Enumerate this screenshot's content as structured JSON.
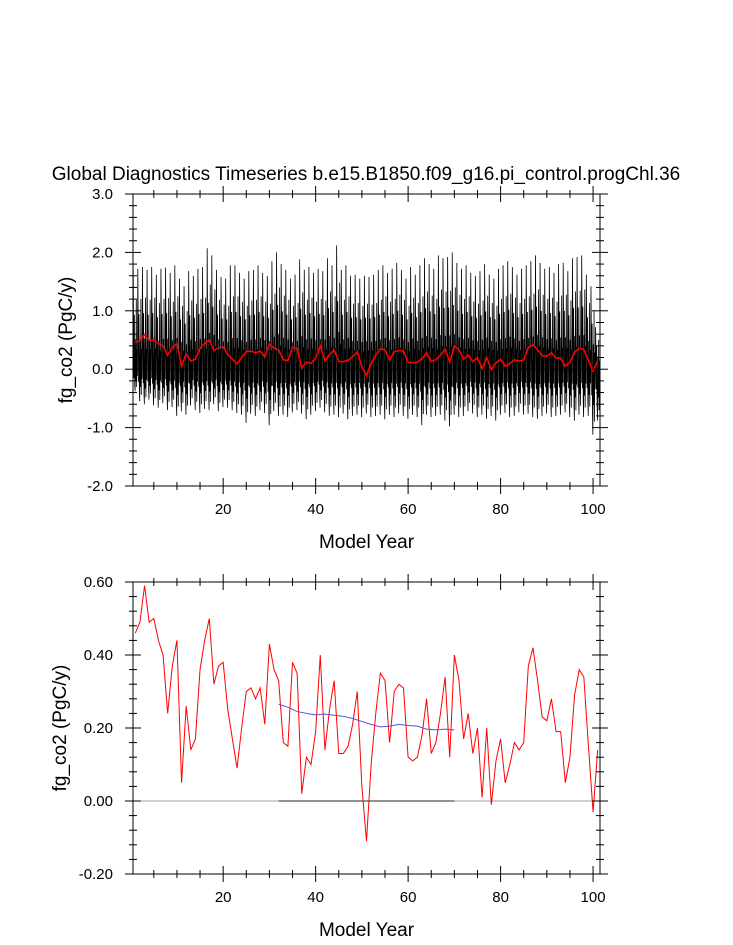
{
  "figure": {
    "title": "Global Diagnostics Timeseries b.e15.B1850.f09_g16.pi_control.progChl.36"
  },
  "colors": {
    "monthly": "#000000",
    "annual": "#ff0000",
    "trend": "#4a5bd4",
    "zero_line_top": "#000000",
    "zero_line_bottom": "#a0a0a0"
  },
  "chart_data": [
    {
      "type": "line",
      "xlabel": "Model Year",
      "ylabel": "fg_co2 (PgC/y)",
      "xlim": [
        0.5,
        101.5
      ],
      "ylim": [
        -2.0,
        3.0
      ],
      "xticks": [
        20,
        40,
        60,
        80,
        100
      ],
      "yticks": [
        -2.0,
        -1.0,
        0.0,
        1.0,
        2.0,
        3.0
      ],
      "ytick_labels": [
        "-2.0",
        "-1.0",
        "0.0",
        "1.0",
        "2.0",
        "3.0"
      ],
      "reference_line": 0.0,
      "series": [
        {
          "kind": "monthly",
          "note_values": "monthly series: yearly peak (max) and trough (min) in PgC/y, years 1-101",
          "year_max": [
            1.7,
            1.72,
            1.75,
            1.7,
            1.75,
            1.62,
            1.72,
            1.74,
            1.65,
            1.78,
            1.55,
            1.42,
            1.68,
            1.6,
            1.72,
            1.75,
            2.07,
            1.95,
            1.7,
            1.58,
            1.55,
            1.78,
            1.78,
            1.65,
            1.55,
            1.68,
            1.7,
            1.78,
            1.65,
            1.6,
            1.85,
            2.0,
            1.8,
            1.7,
            1.55,
            1.62,
            1.88,
            1.7,
            1.75,
            1.65,
            1.72,
            1.68,
            1.9,
            1.78,
            2.12,
            1.7,
            1.78,
            1.6,
            1.62,
            1.55,
            1.6,
            1.58,
            1.62,
            1.7,
            1.78,
            1.65,
            1.72,
            1.82,
            1.7,
            1.55,
            1.75,
            1.62,
            1.78,
            1.9,
            1.8,
            1.72,
            1.95,
            1.9,
            1.92,
            2.0,
            1.82,
            1.72,
            1.78,
            1.65,
            1.6,
            1.68,
            1.8,
            1.62,
            1.55,
            1.72,
            1.78,
            1.85,
            1.75,
            1.62,
            1.72,
            1.78,
            1.85,
            1.95,
            1.82,
            1.72,
            1.75,
            1.65,
            1.8,
            1.82,
            1.68,
            1.9,
            1.92,
            1.95,
            1.62,
            1.42,
            0.72
          ],
          "year_min": [
            -0.38,
            -0.55,
            -0.6,
            -0.52,
            -0.62,
            -0.66,
            -0.58,
            -0.7,
            -0.65,
            -0.8,
            -0.72,
            -0.78,
            -0.62,
            -0.7,
            -0.75,
            -0.68,
            -0.7,
            -0.6,
            -0.72,
            -0.65,
            -0.66,
            -0.7,
            -0.75,
            -0.78,
            -0.92,
            -0.76,
            -0.8,
            -0.7,
            -0.75,
            -0.96,
            -0.72,
            -0.8,
            -0.78,
            -0.82,
            -0.74,
            -0.7,
            -0.76,
            -0.86,
            -0.78,
            -0.72,
            -0.66,
            -0.74,
            -0.8,
            -0.78,
            -0.82,
            -0.76,
            -0.86,
            -0.8,
            -0.78,
            -0.82,
            -0.76,
            -0.82,
            -0.8,
            -0.78,
            -0.86,
            -0.78,
            -0.82,
            -0.76,
            -0.8,
            -0.85,
            -0.78,
            -0.82,
            -0.96,
            -0.78,
            -0.82,
            -0.8,
            -0.78,
            -0.88,
            -0.98,
            -0.78,
            -0.82,
            -0.8,
            -0.72,
            -0.76,
            -0.82,
            -0.78,
            -0.85,
            -0.8,
            -0.88,
            -0.78,
            -0.75,
            -0.82,
            -0.8,
            -0.74,
            -0.78,
            -0.76,
            -0.82,
            -0.85,
            -0.8,
            -0.76,
            -0.82,
            -0.8,
            -0.78,
            -0.74,
            -0.82,
            -0.88,
            -0.78,
            -0.82,
            -0.8,
            -1.12,
            -0.88
          ]
        },
        {
          "kind": "annual",
          "x_start": 1,
          "values": [
            0.46,
            0.49,
            0.59,
            0.49,
            0.5,
            0.44,
            0.4,
            0.24,
            0.37,
            0.44,
            0.05,
            0.26,
            0.14,
            0.17,
            0.36,
            0.44,
            0.5,
            0.32,
            0.37,
            0.38,
            0.25,
            0.17,
            0.09,
            0.2,
            0.3,
            0.31,
            0.28,
            0.31,
            0.21,
            0.43,
            0.36,
            0.33,
            0.16,
            0.15,
            0.38,
            0.35,
            0.02,
            0.12,
            0.1,
            0.19,
            0.4,
            0.14,
            0.25,
            0.33,
            0.13,
            0.13,
            0.15,
            0.21,
            0.3,
            0.04,
            -0.11,
            0.1,
            0.24,
            0.35,
            0.33,
            0.16,
            0.3,
            0.32,
            0.31,
            0.12,
            0.11,
            0.12,
            0.18,
            0.28,
            0.13,
            0.16,
            0.24,
            0.34,
            0.12,
            0.4,
            0.33,
            0.17,
            0.24,
            0.13,
            0.2,
            0.01,
            0.2,
            -0.01,
            0.11,
            0.17,
            0.05,
            0.1,
            0.16,
            0.14,
            0.16,
            0.37,
            0.42,
            0.33,
            0.23,
            0.22,
            0.28,
            0.19,
            0.19,
            0.05,
            0.12,
            0.29,
            0.36,
            0.34,
            0.15,
            -0.03,
            0.14
          ]
        }
      ]
    },
    {
      "type": "line",
      "xlabel": "Model Year",
      "ylabel": "fg_co2 (PgC/y)",
      "xlim": [
        0.5,
        101.5
      ],
      "ylim": [
        -0.2,
        0.6
      ],
      "xticks": [
        20,
        40,
        60,
        80,
        100
      ],
      "yticks": [
        -0.2,
        0.0,
        0.2,
        0.4,
        0.6
      ],
      "ytick_labels": [
        "-0.20",
        "0.00",
        "0.20",
        "0.40",
        "0.60"
      ],
      "reference_line": 0.0,
      "series": [
        {
          "kind": "annual",
          "x_start": 1,
          "values": [
            0.46,
            0.49,
            0.59,
            0.49,
            0.5,
            0.44,
            0.4,
            0.24,
            0.37,
            0.44,
            0.05,
            0.26,
            0.14,
            0.17,
            0.36,
            0.44,
            0.5,
            0.32,
            0.37,
            0.38,
            0.25,
            0.17,
            0.09,
            0.2,
            0.3,
            0.31,
            0.28,
            0.31,
            0.21,
            0.43,
            0.36,
            0.33,
            0.16,
            0.15,
            0.38,
            0.35,
            0.02,
            0.12,
            0.1,
            0.19,
            0.4,
            0.14,
            0.25,
            0.33,
            0.13,
            0.13,
            0.15,
            0.21,
            0.3,
            0.04,
            -0.11,
            0.1,
            0.24,
            0.35,
            0.33,
            0.16,
            0.3,
            0.32,
            0.31,
            0.12,
            0.11,
            0.12,
            0.18,
            0.28,
            0.13,
            0.16,
            0.24,
            0.34,
            0.12,
            0.4,
            0.33,
            0.17,
            0.24,
            0.13,
            0.2,
            0.01,
            0.2,
            -0.01,
            0.11,
            0.17,
            0.05,
            0.1,
            0.16,
            0.14,
            0.16,
            0.37,
            0.42,
            0.33,
            0.23,
            0.22,
            0.28,
            0.19,
            0.19,
            0.05,
            0.12,
            0.29,
            0.36,
            0.34,
            0.15,
            -0.03,
            0.14
          ]
        },
        {
          "kind": "running-mean",
          "x": [
            32,
            34,
            36,
            38,
            40,
            42,
            44,
            46,
            48,
            50,
            52,
            54,
            56,
            58,
            60,
            62,
            64,
            66,
            68,
            70
          ],
          "values": [
            0.265,
            0.257,
            0.245,
            0.24,
            0.236,
            0.238,
            0.235,
            0.232,
            0.226,
            0.218,
            0.21,
            0.203,
            0.205,
            0.21,
            0.207,
            0.205,
            0.197,
            0.195,
            0.197,
            0.195
          ]
        }
      ]
    }
  ]
}
